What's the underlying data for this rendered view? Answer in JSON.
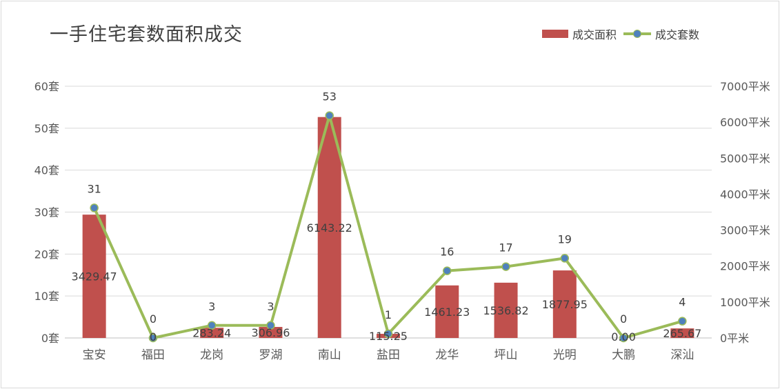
{
  "chart_data": {
    "type": "bar+line",
    "title": "一手住宅套数面积成交",
    "categories": [
      "宝安",
      "福田",
      "龙岗",
      "罗湖",
      "南山",
      "盐田",
      "龙华",
      "坪山",
      "光明",
      "大鹏",
      "深汕"
    ],
    "series": [
      {
        "name": "成交面积",
        "type": "bar",
        "axis": "right",
        "values": [
          3429.47,
          0,
          283.24,
          306.96,
          6143.22,
          115.25,
          1461.23,
          1536.82,
          1877.95,
          0.0,
          265.67
        ],
        "labels": [
          "3429.47",
          "0",
          "283.24",
          "306.96",
          "6143.22",
          "115.25",
          "1461.23",
          "1536.82",
          "1877.95",
          "0.00",
          "265.67"
        ],
        "color": "#c0504d"
      },
      {
        "name": "成交套数",
        "type": "line",
        "axis": "left",
        "values": [
          31,
          0,
          3,
          3,
          53,
          1,
          16,
          17,
          19,
          0,
          4
        ],
        "labels": [
          "31",
          "0",
          "3",
          "3",
          "53",
          "1",
          "16",
          "17",
          "19",
          "0",
          "4"
        ],
        "color": "#9bbb59",
        "marker_color": "#4f81bd"
      }
    ],
    "y_left": {
      "ylim": [
        0,
        60
      ],
      "ticks": [
        0,
        10,
        20,
        30,
        40,
        50,
        60
      ],
      "tick_labels": [
        "0套",
        "10套",
        "20套",
        "30套",
        "40套",
        "50套",
        "60套"
      ]
    },
    "y_right": {
      "ylim": [
        0,
        7000
      ],
      "ticks": [
        0,
        1000,
        2000,
        3000,
        4000,
        5000,
        6000,
        7000
      ],
      "tick_labels": [
        "0平米",
        "1000平米",
        "2000平米",
        "3000平米",
        "4000平米",
        "5000平米",
        "6000平米",
        "7000平米"
      ]
    },
    "grid": true,
    "legend_position": "top-right"
  }
}
